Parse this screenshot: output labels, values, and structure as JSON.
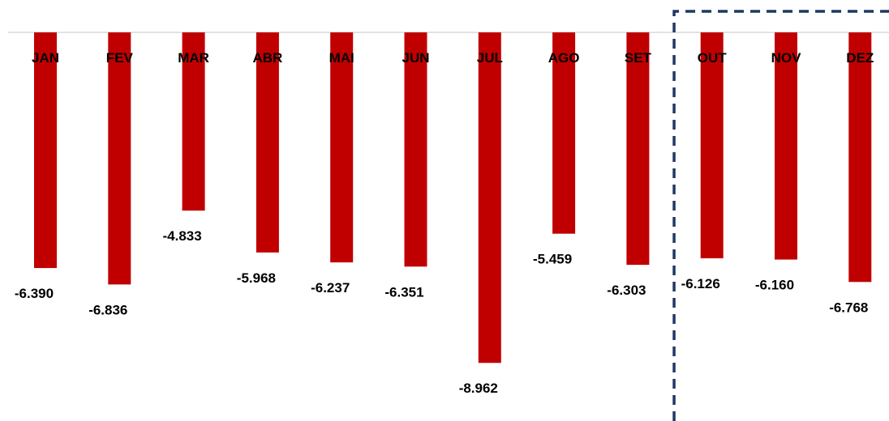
{
  "chart_data": {
    "type": "bar",
    "categories": [
      "JAN",
      "FEV",
      "MAR",
      "ABR",
      "MAI",
      "JUN",
      "JUL",
      "AGO",
      "SET",
      "OUT",
      "NOV",
      "DEZ"
    ],
    "values": [
      -6390,
      -6836,
      -4833,
      -5968,
      -6237,
      -6351,
      -8962,
      -5459,
      -6303,
      -6126,
      -6160,
      -6768
    ],
    "value_labels": [
      "-6.390",
      "-6.836",
      "-4.833",
      "-5.968",
      "-6.237",
      "-6.351",
      "-8.962",
      "-5.459",
      "-6.303",
      "-6.126",
      "-6.160",
      "-6.768"
    ],
    "ylim": [
      -10000,
      0
    ],
    "bar_color": "#C00000",
    "grid": false,
    "legend": "none",
    "annotations": [
      {
        "type": "dashed-box",
        "covers": [
          "OUT",
          "NOV",
          "DEZ"
        ],
        "color": "#1F3864"
      }
    ]
  }
}
